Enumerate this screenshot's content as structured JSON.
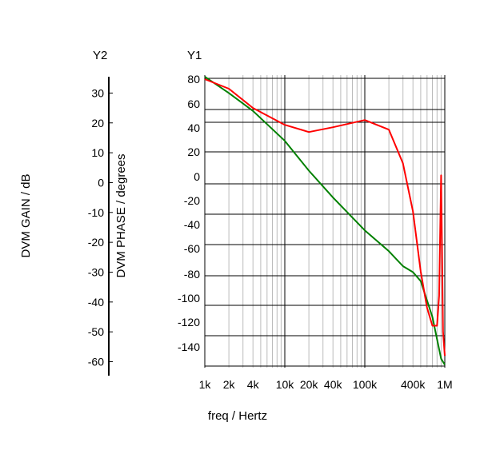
{
  "chart_data": {
    "type": "line",
    "x_scale": "log",
    "xlabel": "freq / Hertz",
    "x_ticks": [
      {
        "value": 1000,
        "label": "1k"
      },
      {
        "value": 2000,
        "label": "2k"
      },
      {
        "value": 4000,
        "label": "4k"
      },
      {
        "value": 10000,
        "label": "10k"
      },
      {
        "value": 20000,
        "label": "20k"
      },
      {
        "value": 40000,
        "label": "40k"
      },
      {
        "value": 100000,
        "label": "100k"
      },
      {
        "value": 400000,
        "label": "400k"
      },
      {
        "value": 1000000,
        "label": "1M"
      }
    ],
    "xlim": [
      1000,
      1000000
    ],
    "y1": {
      "title": "Y1",
      "label": "DVM PHASE / degrees",
      "ticks": [
        80,
        60,
        40,
        20,
        0,
        -20,
        -40,
        -60,
        -80,
        -100,
        -120,
        -140
      ]
    },
    "y2": {
      "title": "Y2",
      "label": "DVM GAIN / dB",
      "ticks": [
        30,
        20,
        10,
        0,
        -10,
        -20,
        -30,
        -40,
        -50,
        -60
      ],
      "ylim": [
        -62,
        36
      ]
    },
    "grid": true,
    "series": [
      {
        "axis": "y2",
        "color": "#008000",
        "points": [
          [
            1000,
            35.5
          ],
          [
            2000,
            30
          ],
          [
            4000,
            24
          ],
          [
            10000,
            14
          ],
          [
            20000,
            4
          ],
          [
            40000,
            -5
          ],
          [
            100000,
            -16
          ],
          [
            200000,
            -23
          ],
          [
            300000,
            -28
          ],
          [
            400000,
            -30
          ],
          [
            500000,
            -33
          ],
          [
            700000,
            -45
          ],
          [
            900000,
            -59
          ],
          [
            1000000,
            -61
          ]
        ]
      },
      {
        "axis": "y1",
        "color": "#ff0000",
        "points": [
          [
            1000,
            80
          ],
          [
            2000,
            72
          ],
          [
            4000,
            56
          ],
          [
            10000,
            42
          ],
          [
            20000,
            36
          ],
          [
            40000,
            40
          ],
          [
            100000,
            46
          ],
          [
            200000,
            38
          ],
          [
            300000,
            10
          ],
          [
            400000,
            -30
          ],
          [
            500000,
            -80
          ],
          [
            600000,
            -110
          ],
          [
            700000,
            -125
          ],
          [
            800000,
            -125
          ],
          [
            850000,
            -100
          ],
          [
            900000,
            0
          ],
          [
            950000,
            -130
          ],
          [
            1000000,
            -150
          ]
        ]
      }
    ]
  }
}
